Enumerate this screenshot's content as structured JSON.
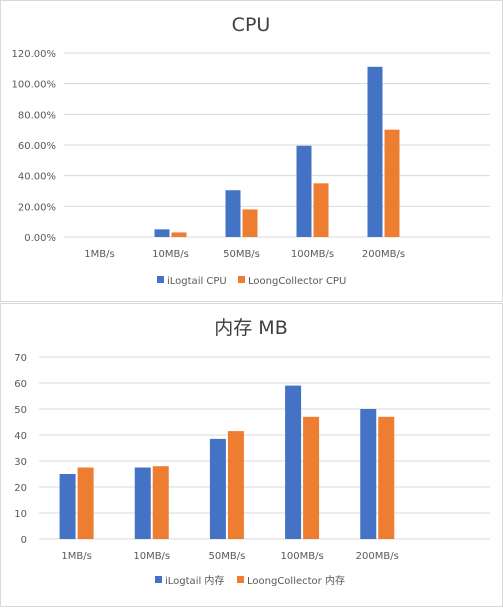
{
  "colors": {
    "primary": "#4472C4",
    "secondary": "#ED7D31",
    "grid": "#D9D9D9",
    "text": "#595959"
  },
  "chart_data": [
    {
      "type": "bar",
      "title": "CPU",
      "categories": [
        "1MB/s",
        "10MB/s",
        "50MB/s",
        "100MB/s",
        "200MB/s"
      ],
      "series": [
        {
          "name": "iLogtail CPU",
          "values": [
            0,
            5,
            30.5,
            59.5,
            111
          ]
        },
        {
          "name": "LoongCollector CPU",
          "values": [
            0,
            3,
            18,
            35,
            70
          ]
        }
      ],
      "yticks": [
        "0.00%",
        "20.00%",
        "40.00%",
        "60.00%",
        "80.00%",
        "100.00%",
        "120.00%"
      ],
      "ylim": [
        0,
        120
      ],
      "grid": true,
      "legend": "bottom"
    },
    {
      "type": "bar",
      "title": "内存 MB",
      "categories": [
        "1MB/s",
        "10MB/s",
        "50MB/s",
        "100MB/s",
        "200MB/s"
      ],
      "series": [
        {
          "name": "iLogtail 内存",
          "values": [
            25,
            27.5,
            38.5,
            59,
            50
          ]
        },
        {
          "name": "LoongCollector 内存",
          "values": [
            27.5,
            28,
            41.5,
            47,
            47
          ]
        }
      ],
      "yticks": [
        "0",
        "10",
        "20",
        "30",
        "40",
        "50",
        "60",
        "70"
      ],
      "ylim": [
        0,
        70
      ],
      "grid": true,
      "legend": "bottom"
    }
  ]
}
